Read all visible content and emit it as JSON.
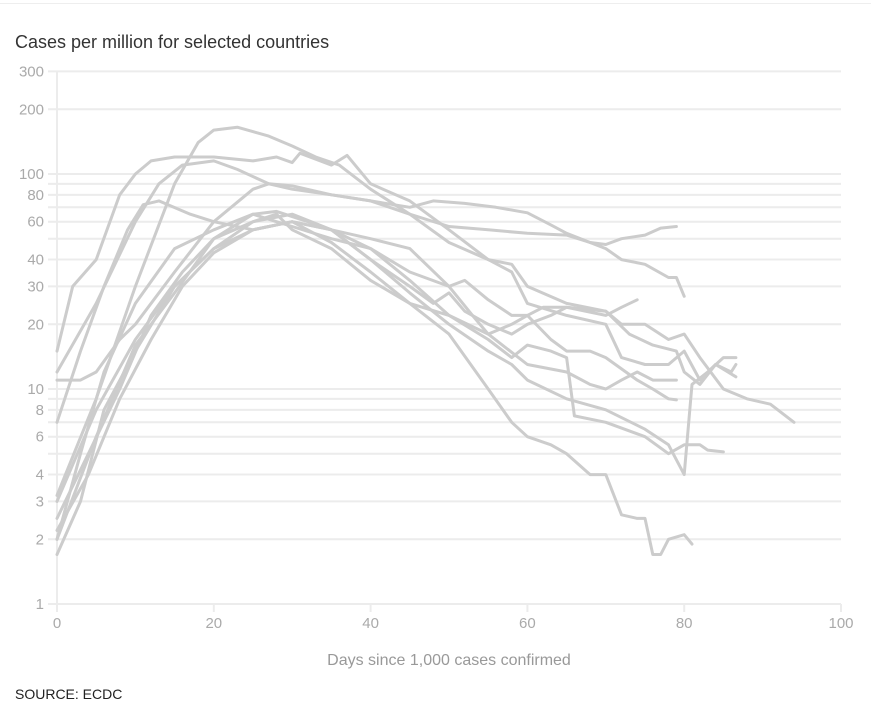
{
  "chart_data": {
    "type": "line",
    "title": "Cases per million for selected countries",
    "xlabel": "Days since 1,000 cases confirmed",
    "ylabel": "",
    "yscale": "log",
    "xlim": [
      0,
      100
    ],
    "ylim": [
      1,
      300
    ],
    "xticks": [
      "0",
      "20",
      "40",
      "60",
      "80",
      "100"
    ],
    "xtick_values": [
      0,
      20,
      40,
      60,
      80,
      100
    ],
    "yticks": [
      "1",
      "2",
      "3",
      "4",
      "6",
      "8",
      "10",
      "20",
      "30",
      "40",
      "60",
      "80",
      "100",
      "200",
      "300"
    ],
    "ytick_values": [
      1,
      2,
      3,
      4,
      6,
      8,
      10,
      20,
      30,
      40,
      60,
      80,
      100,
      200,
      300
    ],
    "ygrid_values": [
      1,
      2,
      3,
      4,
      5,
      6,
      7,
      8,
      9,
      10,
      20,
      30,
      40,
      50,
      60,
      70,
      80,
      90,
      100,
      200,
      300
    ],
    "grid": true,
    "line_color": "#cccccc",
    "series": [
      {
        "points": [
          [
            0,
            3.2
          ],
          [
            5,
            9
          ],
          [
            10,
            30
          ],
          [
            15,
            90
          ],
          [
            18,
            140
          ],
          [
            20,
            160
          ],
          [
            23,
            165
          ],
          [
            27,
            150
          ],
          [
            30,
            135
          ],
          [
            33,
            120
          ],
          [
            36,
            110
          ],
          [
            40,
            85
          ],
          [
            45,
            65
          ],
          [
            50,
            48
          ],
          [
            55,
            40
          ],
          [
            58,
            38
          ],
          [
            60,
            30
          ],
          [
            65,
            25
          ],
          [
            70,
            23
          ],
          [
            72,
            20
          ],
          [
            75,
            20
          ],
          [
            78,
            17
          ],
          [
            80,
            18
          ],
          [
            82,
            14
          ],
          [
            85,
            10
          ],
          [
            88,
            9
          ],
          [
            91,
            8.5
          ],
          [
            94,
            7
          ]
        ]
      },
      {
        "points": [
          [
            0,
            15
          ],
          [
            2,
            30
          ],
          [
            5,
            40
          ],
          [
            8,
            80
          ],
          [
            10,
            100
          ],
          [
            12,
            115
          ],
          [
            15,
            120
          ],
          [
            20,
            120
          ],
          [
            25,
            115
          ],
          [
            28,
            120
          ],
          [
            30,
            113
          ],
          [
            31,
            125
          ],
          [
            35,
            110
          ],
          [
            37,
            122
          ],
          [
            40,
            90
          ],
          [
            45,
            75
          ],
          [
            50,
            55
          ],
          [
            55,
            40
          ],
          [
            58,
            35
          ],
          [
            60,
            25
          ],
          [
            65,
            22
          ],
          [
            70,
            20
          ],
          [
            72,
            14
          ],
          [
            75,
            13
          ],
          [
            78,
            13
          ],
          [
            80,
            15
          ],
          [
            82,
            11
          ],
          [
            84,
            13
          ],
          [
            86.6,
            11.4
          ]
        ]
      },
      {
        "points": [
          [
            0,
            12
          ],
          [
            5,
            25
          ],
          [
            10,
            60
          ],
          [
            13,
            90
          ],
          [
            16,
            110
          ],
          [
            20,
            115
          ],
          [
            23,
            105
          ],
          [
            27,
            90
          ],
          [
            30,
            85
          ],
          [
            35,
            80
          ],
          [
            40,
            75
          ],
          [
            45,
            65
          ],
          [
            50,
            57
          ],
          [
            55,
            55
          ],
          [
            60,
            53
          ],
          [
            65,
            52
          ],
          [
            68,
            48
          ],
          [
            70,
            47
          ],
          [
            72,
            50
          ],
          [
            75,
            52
          ],
          [
            77,
            56
          ],
          [
            79,
            57
          ]
        ]
      },
      {
        "points": [
          [
            0,
            11
          ],
          [
            3,
            11
          ],
          [
            5,
            12
          ],
          [
            8,
            17
          ],
          [
            10,
            20
          ],
          [
            15,
            35
          ],
          [
            20,
            60
          ],
          [
            25,
            85
          ],
          [
            27,
            90
          ],
          [
            30,
            88
          ],
          [
            35,
            80
          ],
          [
            40,
            75
          ],
          [
            45,
            70
          ],
          [
            48,
            75
          ],
          [
            52,
            73
          ],
          [
            56,
            70
          ],
          [
            60,
            66
          ],
          [
            63,
            58
          ],
          [
            65,
            53
          ],
          [
            70,
            45
          ],
          [
            72,
            40
          ],
          [
            75,
            38
          ],
          [
            78,
            33
          ],
          [
            79,
            33
          ],
          [
            80,
            27
          ]
        ]
      },
      {
        "points": [
          [
            0,
            7
          ],
          [
            3,
            15
          ],
          [
            6,
            30
          ],
          [
            9,
            55
          ],
          [
            11,
            72
          ],
          [
            13,
            75
          ],
          [
            17,
            65
          ],
          [
            20,
            60
          ],
          [
            25,
            55
          ],
          [
            30,
            60
          ],
          [
            35,
            55
          ],
          [
            40,
            50
          ],
          [
            45,
            45
          ],
          [
            50,
            30
          ],
          [
            53,
            22
          ],
          [
            55,
            18
          ],
          [
            58,
            20
          ],
          [
            60,
            22
          ],
          [
            62,
            24
          ],
          [
            65,
            24
          ],
          [
            70,
            23
          ],
          [
            73,
            18
          ],
          [
            76,
            16
          ],
          [
            79,
            15
          ],
          [
            80,
            12
          ],
          [
            82,
            10.5
          ],
          [
            84,
            13
          ],
          [
            86,
            12
          ],
          [
            86.6,
            13
          ]
        ]
      },
      {
        "points": [
          [
            0,
            2
          ],
          [
            3,
            5
          ],
          [
            6,
            12
          ],
          [
            10,
            25
          ],
          [
            15,
            45
          ],
          [
            20,
            55
          ],
          [
            25,
            65
          ],
          [
            28,
            60
          ],
          [
            30,
            57
          ],
          [
            35,
            50
          ],
          [
            40,
            45
          ],
          [
            45,
            35
          ],
          [
            50,
            30
          ],
          [
            52,
            32
          ],
          [
            55,
            26
          ],
          [
            58,
            22
          ],
          [
            60,
            22
          ],
          [
            63,
            17
          ],
          [
            65,
            15
          ],
          [
            68,
            15
          ],
          [
            70,
            14
          ],
          [
            74,
            11
          ],
          [
            76,
            10
          ],
          [
            78,
            9
          ],
          [
            79,
            8.9
          ]
        ]
      },
      {
        "points": [
          [
            0,
            1.7
          ],
          [
            3,
            3
          ],
          [
            6,
            8
          ],
          [
            10,
            15
          ],
          [
            15,
            30
          ],
          [
            20,
            45
          ],
          [
            25,
            60
          ],
          [
            28,
            65
          ],
          [
            30,
            55
          ],
          [
            35,
            45
          ],
          [
            40,
            32
          ],
          [
            45,
            25
          ],
          [
            50,
            22
          ],
          [
            55,
            18
          ],
          [
            60,
            13
          ],
          [
            65,
            12
          ],
          [
            68,
            10.5
          ],
          [
            70,
            10
          ],
          [
            72,
            11
          ],
          [
            74,
            12
          ],
          [
            76,
            11
          ],
          [
            79,
            11
          ]
        ]
      },
      {
        "points": [
          [
            0,
            2.5
          ],
          [
            4,
            5
          ],
          [
            8,
            10
          ],
          [
            12,
            22
          ],
          [
            16,
            35
          ],
          [
            20,
            50
          ],
          [
            25,
            60
          ],
          [
            30,
            65
          ],
          [
            35,
            55
          ],
          [
            40,
            40
          ],
          [
            45,
            30
          ],
          [
            48,
            25
          ],
          [
            50,
            28
          ],
          [
            52,
            23
          ],
          [
            55,
            20
          ],
          [
            58,
            18
          ],
          [
            60,
            20
          ],
          [
            63,
            22
          ],
          [
            65,
            24
          ],
          [
            70,
            22
          ],
          [
            72,
            24
          ],
          [
            74,
            26
          ]
        ]
      },
      {
        "points": [
          [
            0,
            3
          ],
          [
            5,
            8
          ],
          [
            10,
            17
          ],
          [
            15,
            30
          ],
          [
            20,
            45
          ],
          [
            25,
            55
          ],
          [
            30,
            60
          ],
          [
            35,
            48
          ],
          [
            40,
            35
          ],
          [
            45,
            25
          ],
          [
            50,
            18
          ],
          [
            55,
            10
          ],
          [
            58,
            7
          ],
          [
            60,
            6
          ],
          [
            63,
            5.5
          ],
          [
            65,
            5
          ],
          [
            68,
            4
          ],
          [
            70,
            4
          ],
          [
            72,
            2.6
          ],
          [
            74,
            2.5
          ],
          [
            75,
            2.5
          ],
          [
            76,
            1.7
          ],
          [
            77,
            1.7
          ],
          [
            78,
            2
          ],
          [
            80,
            2.1
          ],
          [
            81,
            1.9
          ]
        ]
      },
      {
        "points": [
          [
            0,
            2.2
          ],
          [
            4,
            4
          ],
          [
            8,
            9
          ],
          [
            12,
            17
          ],
          [
            16,
            30
          ],
          [
            20,
            43
          ],
          [
            25,
            55
          ],
          [
            30,
            60
          ],
          [
            35,
            55
          ],
          [
            40,
            40
          ],
          [
            45,
            28
          ],
          [
            50,
            20
          ],
          [
            55,
            15
          ],
          [
            58,
            13
          ],
          [
            60,
            11
          ],
          [
            65,
            9
          ],
          [
            70,
            8
          ],
          [
            75,
            6.5
          ],
          [
            78,
            5.5
          ],
          [
            80,
            4
          ],
          [
            81,
            10.5
          ],
          [
            83,
            12
          ],
          [
            85,
            14
          ],
          [
            86.6,
            14
          ]
        ]
      },
      {
        "points": [
          [
            0,
            2
          ],
          [
            5,
            6
          ],
          [
            10,
            16
          ],
          [
            15,
            28
          ],
          [
            20,
            50
          ],
          [
            25,
            65
          ],
          [
            28,
            67
          ],
          [
            32,
            60
          ],
          [
            35,
            55
          ],
          [
            40,
            45
          ],
          [
            45,
            32
          ],
          [
            50,
            22
          ],
          [
            55,
            17
          ],
          [
            58,
            14
          ],
          [
            60,
            16
          ],
          [
            63,
            15
          ],
          [
            65,
            14
          ],
          [
            66,
            7.5
          ],
          [
            70,
            7
          ],
          [
            75,
            6
          ],
          [
            78,
            5
          ],
          [
            80,
            5.5
          ],
          [
            82,
            5.5
          ],
          [
            83,
            5.2
          ],
          [
            85,
            5.1
          ]
        ]
      }
    ]
  },
  "source": "SOURCE: ECDC"
}
